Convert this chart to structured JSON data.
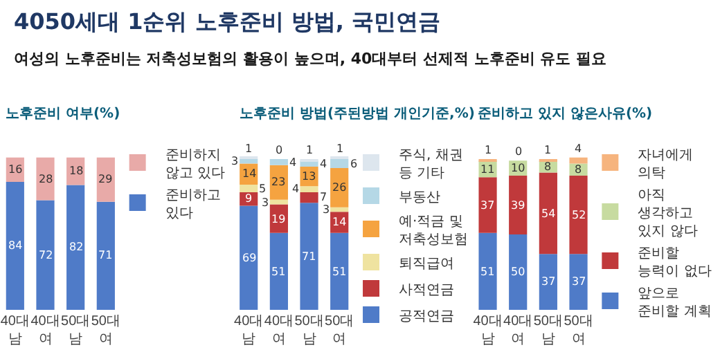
{
  "chart_data": [
    {
      "type": "bar",
      "title": "노후준비 여부(%)",
      "annotations": [
        "4050세대 1순위 노후준비 방법, 국민연금",
        "여성의 노후준비는 저축성보험의 활용이 높으며, 40대부터 선제적 노후준비 유도 필요"
      ],
      "stacked": true,
      "data_labels": true,
      "legend": "right",
      "tick_labels": "x",
      "categories": [
        "40대 남",
        "40대 여",
        "50대 남",
        "50대 여"
      ],
      "series": [
        {
          "name": "준비하고 있다",
          "color": "#4f7bc8",
          "values": [
            84,
            72,
            82,
            71
          ]
        },
        {
          "name": "준비하지 않고 있다",
          "color": "#e8aaa8",
          "values": [
            16,
            28,
            18,
            29
          ]
        }
      ]
    },
    {
      "type": "bar",
      "title": "노후준비 방법(주된방법 개인기준,%)",
      "stacked": true,
      "data_labels": true,
      "legend": "right",
      "tick_labels": "x",
      "categories": [
        "40대 남",
        "40대 여",
        "50대 남",
        "50대 여"
      ],
      "series": [
        {
          "name": "공적연금",
          "color": "#4f7bc8",
          "values": [
            69,
            51,
            71,
            51
          ]
        },
        {
          "name": "사적연금",
          "color": "#c0393b",
          "values": [
            9,
            19,
            7,
            14
          ]
        },
        {
          "name": "퇴직급여",
          "color": "#efe3a0",
          "values": [
            5,
            3,
            4,
            3
          ]
        },
        {
          "name": "예·적금 및 저축성보험",
          "color": "#f5a340",
          "values": [
            14,
            23,
            13,
            26
          ]
        },
        {
          "name": "부동산",
          "color": "#b5d8e6",
          "values": [
            3,
            4,
            4,
            6
          ]
        },
        {
          "name": "주식, 채권 등 기타",
          "color": "#dde6ee",
          "values": [
            1,
            0,
            1,
            1
          ]
        }
      ]
    },
    {
      "type": "bar",
      "title": "준비하고 있지 않은사유(%)",
      "stacked": true,
      "data_labels": true,
      "legend": "right",
      "tick_labels": "x",
      "categories": [
        "40대 남",
        "40대 여",
        "50대 남",
        "50대 여"
      ],
      "series": [
        {
          "name": "앞으로 준비할 계획",
          "color": "#4f7bc8",
          "values": [
            51,
            50,
            37,
            37
          ]
        },
        {
          "name": "준비할 능력이 없다",
          "color": "#c0393b",
          "values": [
            37,
            39,
            54,
            52
          ]
        },
        {
          "name": "아직 생각하고 있지 않다",
          "color": "#c7dba0",
          "values": [
            11,
            10,
            8,
            8
          ]
        },
        {
          "name": "자녀에게 의탁",
          "color": "#f6b47e",
          "values": [
            1,
            0,
            1,
            4
          ]
        }
      ]
    }
  ]
}
